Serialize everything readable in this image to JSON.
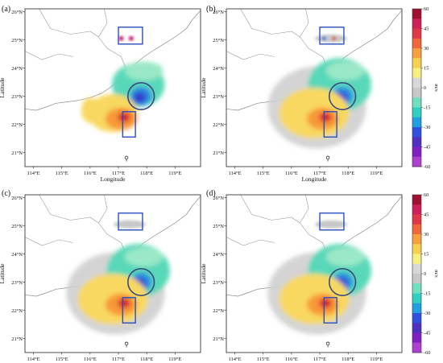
{
  "figure": {
    "panels": [
      {
        "label": "(a)"
      },
      {
        "label": "(b)"
      },
      {
        "label": "(c)"
      },
      {
        "label": "(d)"
      }
    ],
    "xlabel": "Longitude",
    "ylabel": "Latitude",
    "x_ticks": [
      "114°E",
      "115°E",
      "116°E",
      "117°E",
      "118°E",
      "119°E"
    ],
    "y_ticks": [
      "26°N",
      "25°N",
      "24°N",
      "23°N",
      "22°N",
      "21°N"
    ],
    "colorbar": {
      "unit": "m/s",
      "ticks": [
        "60",
        "45",
        "30",
        "15",
        "0",
        "-15",
        "-30",
        "-45",
        "-60"
      ],
      "colors": [
        "#a01030",
        "#d0205a",
        "#e03848",
        "#f06838",
        "#f8a040",
        "#f8d050",
        "#f8f080",
        "#d8d8d8",
        "#c8c8c8",
        "#70e0c0",
        "#30d0c0",
        "#20a0e0",
        "#3050e0",
        "#5030c0",
        "#8020c0",
        "#b040d0"
      ]
    }
  },
  "chart_data": [
    {
      "type": "heatmap",
      "title": "(a)",
      "xlabel": "Longitude",
      "ylabel": "Latitude",
      "xlim": [
        113.7,
        119.9
      ],
      "ylim": [
        20.5,
        26.1
      ],
      "colorbar_range": [
        -60,
        60
      ],
      "unit": "m/s"
    },
    {
      "type": "heatmap",
      "title": "(b)",
      "xlabel": "Longitude",
      "ylabel": "Latitude",
      "xlim": [
        113.7,
        119.9
      ],
      "ylim": [
        20.5,
        26.1
      ],
      "colorbar_range": [
        -60,
        60
      ],
      "unit": "m/s"
    },
    {
      "type": "heatmap",
      "title": "(c)",
      "xlabel": "Longitude",
      "ylabel": "Latitude",
      "xlim": [
        113.7,
        119.9
      ],
      "ylim": [
        20.5,
        26.1
      ],
      "colorbar_range": [
        -60,
        60
      ],
      "unit": "m/s"
    },
    {
      "type": "heatmap",
      "title": "(d)",
      "xlabel": "Longitude",
      "ylabel": "Latitude",
      "xlim": [
        113.7,
        119.9
      ],
      "ylim": [
        20.5,
        26.1
      ],
      "colorbar_range": [
        -60,
        60
      ],
      "unit": "m/s"
    }
  ]
}
